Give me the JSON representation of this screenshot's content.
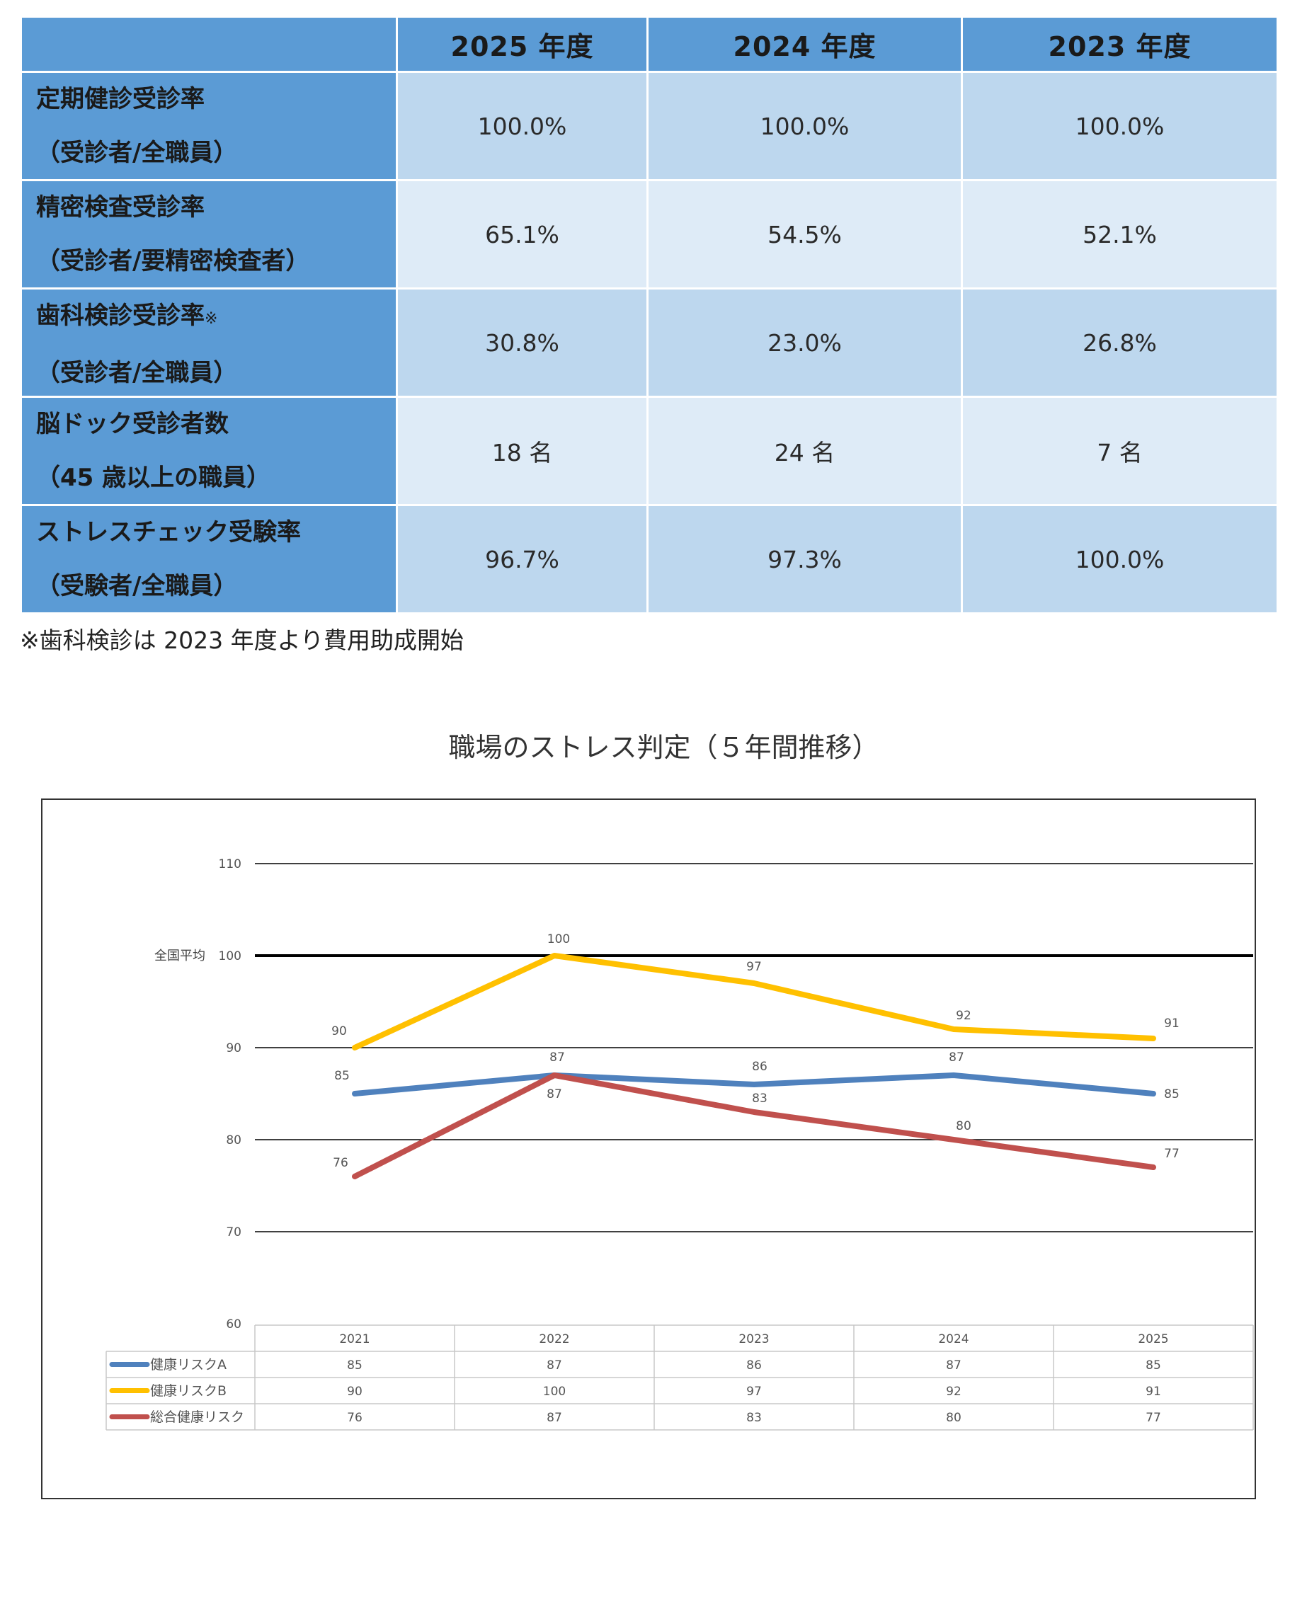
{
  "table": {
    "headers": [
      "",
      "2025 年度",
      "2024 年度",
      "2023 年度"
    ],
    "rows": [
      {
        "line1": "定期健診受診率",
        "mark": "",
        "line2": "（受診者/全職員）",
        "values": [
          "100.0%",
          "100.0%",
          "100.0%"
        ]
      },
      {
        "line1": "精密検査受診率",
        "mark": "",
        "line2": "（受診者/要精密検査者）",
        "values": [
          "65.1%",
          "54.5%",
          "52.1%"
        ]
      },
      {
        "line1": "歯科検診受診率",
        "mark": "※",
        "line2": "（受診者/全職員）",
        "values": [
          "30.8%",
          "23.0%",
          "26.8%"
        ]
      },
      {
        "line1": "脳ドック受診者数",
        "mark": "",
        "line2": "（45 歳以上の職員）",
        "values": [
          "18 名",
          "24 名",
          "7 名"
        ]
      },
      {
        "line1": "ストレスチェック受験率",
        "mark": "",
        "line2": "（受験者/全職員）",
        "values": [
          "96.7%",
          "97.3%",
          "100.0%"
        ]
      }
    ]
  },
  "footnote": "※歯科検診は 2023 年度より費用助成開始",
  "chart_data": {
    "type": "line",
    "title": "職場のストレス判定（５年間推移）",
    "categories": [
      "2021",
      "2022",
      "2023",
      "2024",
      "2025"
    ],
    "ylim": [
      60,
      110
    ],
    "yticks": [
      60,
      70,
      80,
      90,
      100,
      110
    ],
    "grid": true,
    "reference_line": {
      "label": "全国平均",
      "value": 100,
      "color": "#000000"
    },
    "series": [
      {
        "name": "健康リスクA",
        "values": [
          85,
          87,
          86,
          87,
          85
        ],
        "color": "#4f81bd"
      },
      {
        "name": "健康リスクB",
        "values": [
          90,
          100,
          97,
          92,
          91
        ],
        "color": "#ffc000"
      },
      {
        "name": "総合健康リスク",
        "values": [
          76,
          87,
          83,
          80,
          77
        ],
        "color": "#c0504d"
      }
    ],
    "legend": "data-table-below"
  }
}
